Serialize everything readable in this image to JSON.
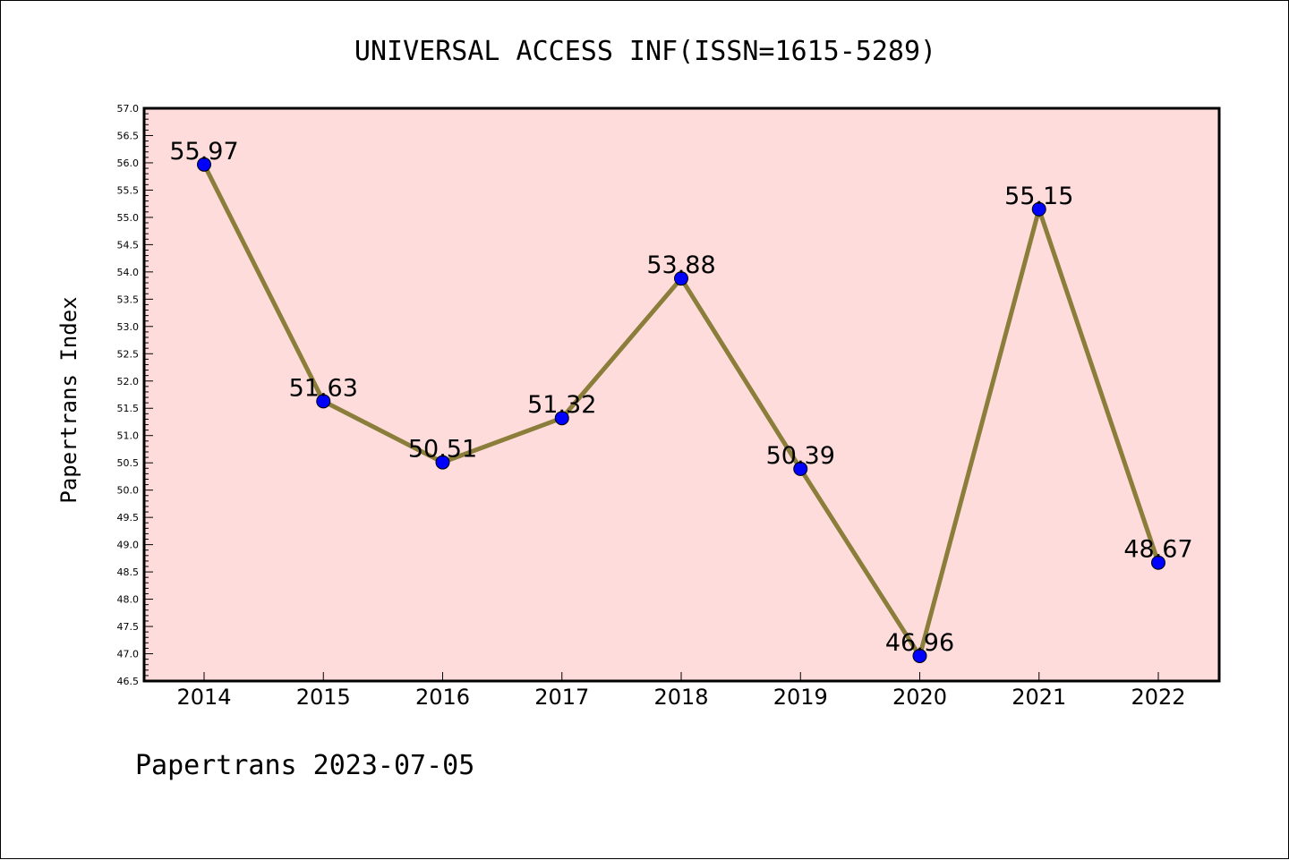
{
  "chart_data": {
    "type": "line",
    "title": "UNIVERSAL ACCESS INF(ISSN=1615-5289)",
    "ylabel": "Papertrans Index",
    "xlabel": "",
    "footer": "Papertrans 2023-07-05",
    "categories": [
      "2014",
      "2015",
      "2016",
      "2017",
      "2018",
      "2019",
      "2020",
      "2021",
      "2022"
    ],
    "series": [
      {
        "values": [
          55.97,
          51.63,
          50.51,
          51.32,
          53.88,
          50.39,
          46.96,
          55.15,
          48.67
        ],
        "labels": [
          "55.97",
          "51.63",
          "50.51",
          "51.32",
          "53.88",
          "50.39",
          "46.96",
          "55.15",
          "48.67"
        ]
      }
    ],
    "ylim": [
      46.5,
      57.0
    ],
    "yticks": [
      "46.5",
      "47.0",
      "47.5",
      "48.0",
      "48.5",
      "49.0",
      "49.5",
      "50.0",
      "50.5",
      "51.0",
      "51.5",
      "52.0",
      "52.5",
      "53.0",
      "53.5",
      "54.0",
      "54.5",
      "55.0",
      "55.5",
      "56.0",
      "56.5",
      "57.0"
    ],
    "grid": false,
    "colors": {
      "plot_background": "#ffdcdc",
      "line": "#8b7d3a",
      "marker": "#0000ff",
      "axes": "#000000"
    }
  }
}
